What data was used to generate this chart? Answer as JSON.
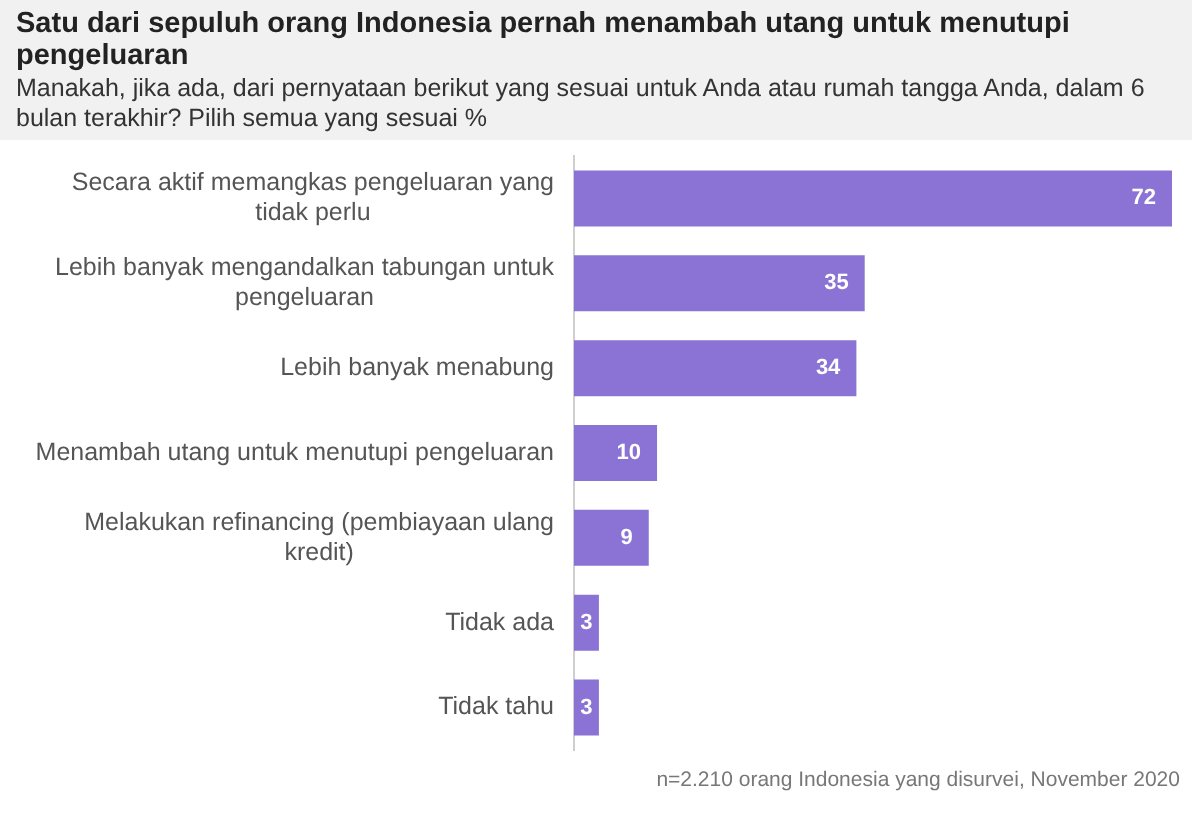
{
  "chart_data": {
    "type": "bar",
    "orientation": "horizontal",
    "title": "Satu dari sepuluh orang Indonesia pernah menambah utang untuk menutupi pengeluaran",
    "subtitle": "Manakah, jika ada, dari pernyataan berikut yang sesuai untuk Anda atau rumah tangga Anda, dalam 6 bulan terakhir? Pilih semua yang sesuai %",
    "categories": [
      "Secara aktif memangkas pengeluaran yang tidak perlu",
      "Lebih banyak mengandalkan tabungan untuk pengeluaran",
      "Lebih banyak menabung",
      "Menambah utang untuk menutupi pengeluaran",
      "Melakukan refinancing (pembiayaan ulang kredit)",
      "Tidak ada",
      "Tidak tahu"
    ],
    "values": [
      72,
      35,
      34,
      10,
      9,
      3,
      3
    ],
    "color": "#8a73d4",
    "data_labels": true,
    "annotations": [
      "n=2.210 orang Indonesia yang disurvei, November 2020"
    ]
  }
}
